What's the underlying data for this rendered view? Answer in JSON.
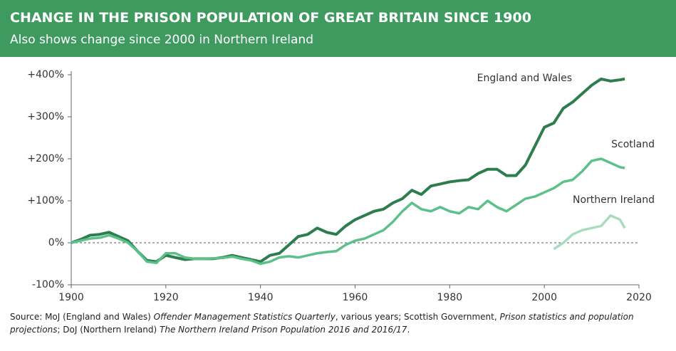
{
  "chart_data": {
    "type": "line",
    "title": "CHANGE IN THE PRISON POPULATION OF GREAT BRITAIN SINCE 1900",
    "subtitle": "Also shows change since 2000 in Northern Ireland",
    "x": [
      1900,
      1902,
      1904,
      1906,
      1908,
      1910,
      1912,
      1914,
      1916,
      1918,
      1920,
      1922,
      1924,
      1926,
      1928,
      1930,
      1932,
      1934,
      1936,
      1938,
      1940,
      1942,
      1944,
      1946,
      1948,
      1950,
      1952,
      1954,
      1956,
      1958,
      1960,
      1962,
      1964,
      1966,
      1968,
      1970,
      1972,
      1974,
      1976,
      1978,
      1980,
      1982,
      1984,
      1986,
      1988,
      1990,
      1992,
      1994,
      1996,
      1998,
      2000,
      2002,
      2004,
      2006,
      2008,
      2010,
      2012,
      2014,
      2016,
      2017
    ],
    "series": [
      {
        "name": "England and Wales",
        "color": "#2e7d4f",
        "values": [
          0,
          8,
          18,
          20,
          25,
          15,
          5,
          -20,
          -42,
          -45,
          -30,
          -35,
          -40,
          -38,
          -38,
          -38,
          -35,
          -30,
          -35,
          -40,
          -45,
          -30,
          -25,
          -5,
          15,
          20,
          35,
          25,
          20,
          40,
          55,
          65,
          75,
          80,
          95,
          105,
          125,
          115,
          135,
          140,
          145,
          148,
          150,
          165,
          175,
          175,
          160,
          160,
          185,
          230,
          275,
          285,
          320,
          335,
          355,
          375,
          390,
          385,
          388,
          390
        ]
      },
      {
        "name": "Scotland",
        "color": "#5cc08a",
        "values": [
          0,
          5,
          10,
          12,
          18,
          10,
          0,
          -20,
          -45,
          -48,
          -25,
          -25,
          -35,
          -38,
          -38,
          -37,
          -36,
          -33,
          -38,
          -42,
          -50,
          -45,
          -35,
          -32,
          -35,
          -30,
          -25,
          -22,
          -20,
          -5,
          5,
          10,
          20,
          30,
          50,
          75,
          95,
          80,
          75,
          85,
          75,
          70,
          85,
          80,
          100,
          85,
          75,
          90,
          105,
          110,
          120,
          130,
          145,
          150,
          170,
          195,
          200,
          190,
          180,
          178
        ]
      },
      {
        "name": "Northern Ireland",
        "color": "#a8dcc0",
        "values": [
          null,
          null,
          null,
          null,
          null,
          null,
          null,
          null,
          null,
          null,
          null,
          null,
          null,
          null,
          null,
          null,
          null,
          null,
          null,
          null,
          null,
          null,
          null,
          null,
          null,
          null,
          null,
          null,
          null,
          null,
          null,
          null,
          null,
          null,
          null,
          null,
          null,
          null,
          null,
          null,
          null,
          null,
          null,
          null,
          null,
          null,
          null,
          null,
          null,
          null,
          null,
          -15,
          0,
          20,
          30,
          35,
          40,
          65,
          55,
          35
        ]
      }
    ],
    "xlim": [
      1900,
      2020
    ],
    "xticks": [
      1900,
      1920,
      1940,
      1960,
      1980,
      2000,
      2020
    ],
    "ylim": [
      -100,
      400
    ],
    "yticks": [
      {
        "value": -100,
        "label": "-100%"
      },
      {
        "value": 0,
        "label": "0%"
      },
      {
        "value": 100,
        "label": "+100%"
      },
      {
        "value": 200,
        "label": "+200%"
      },
      {
        "value": 300,
        "label": "+300%"
      },
      {
        "value": 400,
        "label": "+400%"
      }
    ],
    "source": [
      {
        "text": "Source: MoJ (England and Wales) ",
        "italic": false
      },
      {
        "text": "Offender Management Statistics Quarterly",
        "italic": true
      },
      {
        "text": ", various years; Scottish Government, ",
        "italic": false
      },
      {
        "text": "Prison statistics and population projections",
        "italic": true
      },
      {
        "text": "; DoJ (Northern Ireland) ",
        "italic": false
      },
      {
        "text": "The Northern Ireland Prison Population 2016 and 2016/17",
        "italic": true
      },
      {
        "text": ".",
        "italic": false
      }
    ]
  }
}
